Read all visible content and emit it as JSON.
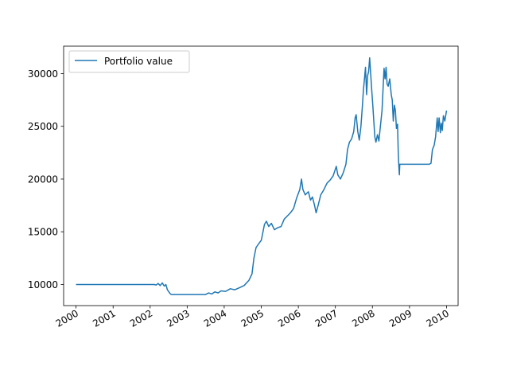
{
  "chart_data": {
    "type": "line",
    "title": "",
    "xlabel": "",
    "ylabel": "",
    "x_axis": {
      "kind": "date",
      "range": [
        "1999-09-01",
        "2010-04-25"
      ],
      "ticks": [
        "2000",
        "2001",
        "2002",
        "2003",
        "2004",
        "2005",
        "2006",
        "2007",
        "2008",
        "2009",
        "2010"
      ]
    },
    "y_axis": {
      "range": [
        8000,
        32600
      ],
      "ticks": [
        10000,
        15000,
        20000,
        25000,
        30000
      ],
      "tick_labels": [
        "10000",
        "15000",
        "20000",
        "25000",
        "30000"
      ]
    },
    "grid": false,
    "legend": {
      "position": "top-left",
      "entries": [
        "Portfolio value"
      ]
    },
    "series": [
      {
        "name": "Portfolio value",
        "color": "#1f77b4",
        "points": [
          [
            "2000-01-01",
            10000
          ],
          [
            "2002-02-10",
            10000
          ],
          [
            "2002-03-01",
            9950
          ],
          [
            "2002-03-20",
            10100
          ],
          [
            "2002-04-10",
            9900
          ],
          [
            "2002-05-01",
            10150
          ],
          [
            "2002-05-20",
            9850
          ],
          [
            "2002-06-05",
            10000
          ],
          [
            "2002-06-20",
            9500
          ],
          [
            "2002-07-05",
            9300
          ],
          [
            "2002-07-20",
            9100
          ],
          [
            "2002-08-01",
            9050
          ],
          [
            "2003-07-01",
            9050
          ],
          [
            "2003-08-01",
            9200
          ],
          [
            "2003-09-01",
            9100
          ],
          [
            "2003-10-01",
            9300
          ],
          [
            "2003-11-01",
            9200
          ],
          [
            "2003-12-01",
            9400
          ],
          [
            "2004-01-15",
            9350
          ],
          [
            "2004-03-01",
            9600
          ],
          [
            "2004-04-15",
            9500
          ],
          [
            "2004-06-01",
            9700
          ],
          [
            "2004-07-15",
            9900
          ],
          [
            "2004-09-01",
            10400
          ],
          [
            "2004-10-01",
            11000
          ],
          [
            "2004-10-20",
            12500
          ],
          [
            "2004-11-10",
            13500
          ],
          [
            "2004-12-01",
            13800
          ],
          [
            "2005-01-01",
            14200
          ],
          [
            "2005-02-01",
            15700
          ],
          [
            "2005-02-20",
            16000
          ],
          [
            "2005-03-15",
            15500
          ],
          [
            "2005-04-10",
            15800
          ],
          [
            "2005-05-10",
            15200
          ],
          [
            "2005-06-15",
            15400
          ],
          [
            "2005-07-15",
            15500
          ],
          [
            "2005-08-15",
            16200
          ],
          [
            "2005-09-15",
            16500
          ],
          [
            "2005-10-15",
            16800
          ],
          [
            "2005-11-15",
            17200
          ],
          [
            "2005-12-15",
            18200
          ],
          [
            "2006-01-15",
            19000
          ],
          [
            "2006-02-01",
            20000
          ],
          [
            "2006-02-15",
            19000
          ],
          [
            "2006-03-10",
            18500
          ],
          [
            "2006-04-10",
            18800
          ],
          [
            "2006-05-01",
            18000
          ],
          [
            "2006-05-20",
            18300
          ],
          [
            "2006-06-10",
            17500
          ],
          [
            "2006-06-25",
            16800
          ],
          [
            "2006-07-15",
            17500
          ],
          [
            "2006-08-10",
            18500
          ],
          [
            "2006-09-10",
            19000
          ],
          [
            "2006-10-10",
            19600
          ],
          [
            "2006-11-10",
            19900
          ],
          [
            "2006-12-10",
            20300
          ],
          [
            "2007-01-10",
            21200
          ],
          [
            "2007-01-25",
            20400
          ],
          [
            "2007-02-20",
            20000
          ],
          [
            "2007-03-20",
            20600
          ],
          [
            "2007-04-15",
            21400
          ],
          [
            "2007-05-01",
            22800
          ],
          [
            "2007-05-20",
            23500
          ],
          [
            "2007-06-10",
            23800
          ],
          [
            "2007-07-01",
            24500
          ],
          [
            "2007-07-15",
            25800
          ],
          [
            "2007-07-25",
            26100
          ],
          [
            "2007-08-10",
            24500
          ],
          [
            "2007-08-25",
            23700
          ],
          [
            "2007-09-10",
            25000
          ],
          [
            "2007-09-25",
            27000
          ],
          [
            "2007-10-05",
            28500
          ],
          [
            "2007-10-15",
            29500
          ],
          [
            "2007-10-25",
            30600
          ],
          [
            "2007-11-05",
            28000
          ],
          [
            "2007-11-15",
            29800
          ],
          [
            "2007-11-25",
            30200
          ],
          [
            "2007-12-05",
            31500
          ],
          [
            "2007-12-15",
            30000
          ],
          [
            "2007-12-25",
            28500
          ],
          [
            "2008-01-05",
            27000
          ],
          [
            "2008-01-15",
            25500
          ],
          [
            "2008-01-25",
            24000
          ],
          [
            "2008-02-05",
            23500
          ],
          [
            "2008-02-20",
            24200
          ],
          [
            "2008-03-05",
            23600
          ],
          [
            "2008-03-20",
            25000
          ],
          [
            "2008-04-05",
            26500
          ],
          [
            "2008-04-15",
            28500
          ],
          [
            "2008-04-25",
            30500
          ],
          [
            "2008-05-05",
            29500
          ],
          [
            "2008-05-15",
            30600
          ],
          [
            "2008-05-25",
            29000
          ],
          [
            "2008-06-05",
            28800
          ],
          [
            "2008-06-20",
            29500
          ],
          [
            "2008-07-05",
            28000
          ],
          [
            "2008-07-15",
            27500
          ],
          [
            "2008-07-25",
            25500
          ],
          [
            "2008-08-05",
            27000
          ],
          [
            "2008-08-15",
            26500
          ],
          [
            "2008-08-25",
            24800
          ],
          [
            "2008-09-05",
            25200
          ],
          [
            "2008-09-12",
            22500
          ],
          [
            "2008-09-18",
            21200
          ],
          [
            "2008-09-23",
            20400
          ],
          [
            "2008-09-27",
            21400
          ],
          [
            "2009-07-15",
            21400
          ],
          [
            "2009-08-01",
            21500
          ],
          [
            "2009-08-15",
            22800
          ],
          [
            "2009-09-01",
            23200
          ],
          [
            "2009-09-15",
            24000
          ],
          [
            "2009-10-01",
            25800
          ],
          [
            "2009-10-10",
            24500
          ],
          [
            "2009-10-20",
            25800
          ],
          [
            "2009-11-01",
            24400
          ],
          [
            "2009-11-10",
            25300
          ],
          [
            "2009-11-20",
            24600
          ],
          [
            "2009-12-01",
            26000
          ],
          [
            "2009-12-15",
            25500
          ],
          [
            "2010-01-01",
            26500
          ]
        ]
      }
    ]
  }
}
